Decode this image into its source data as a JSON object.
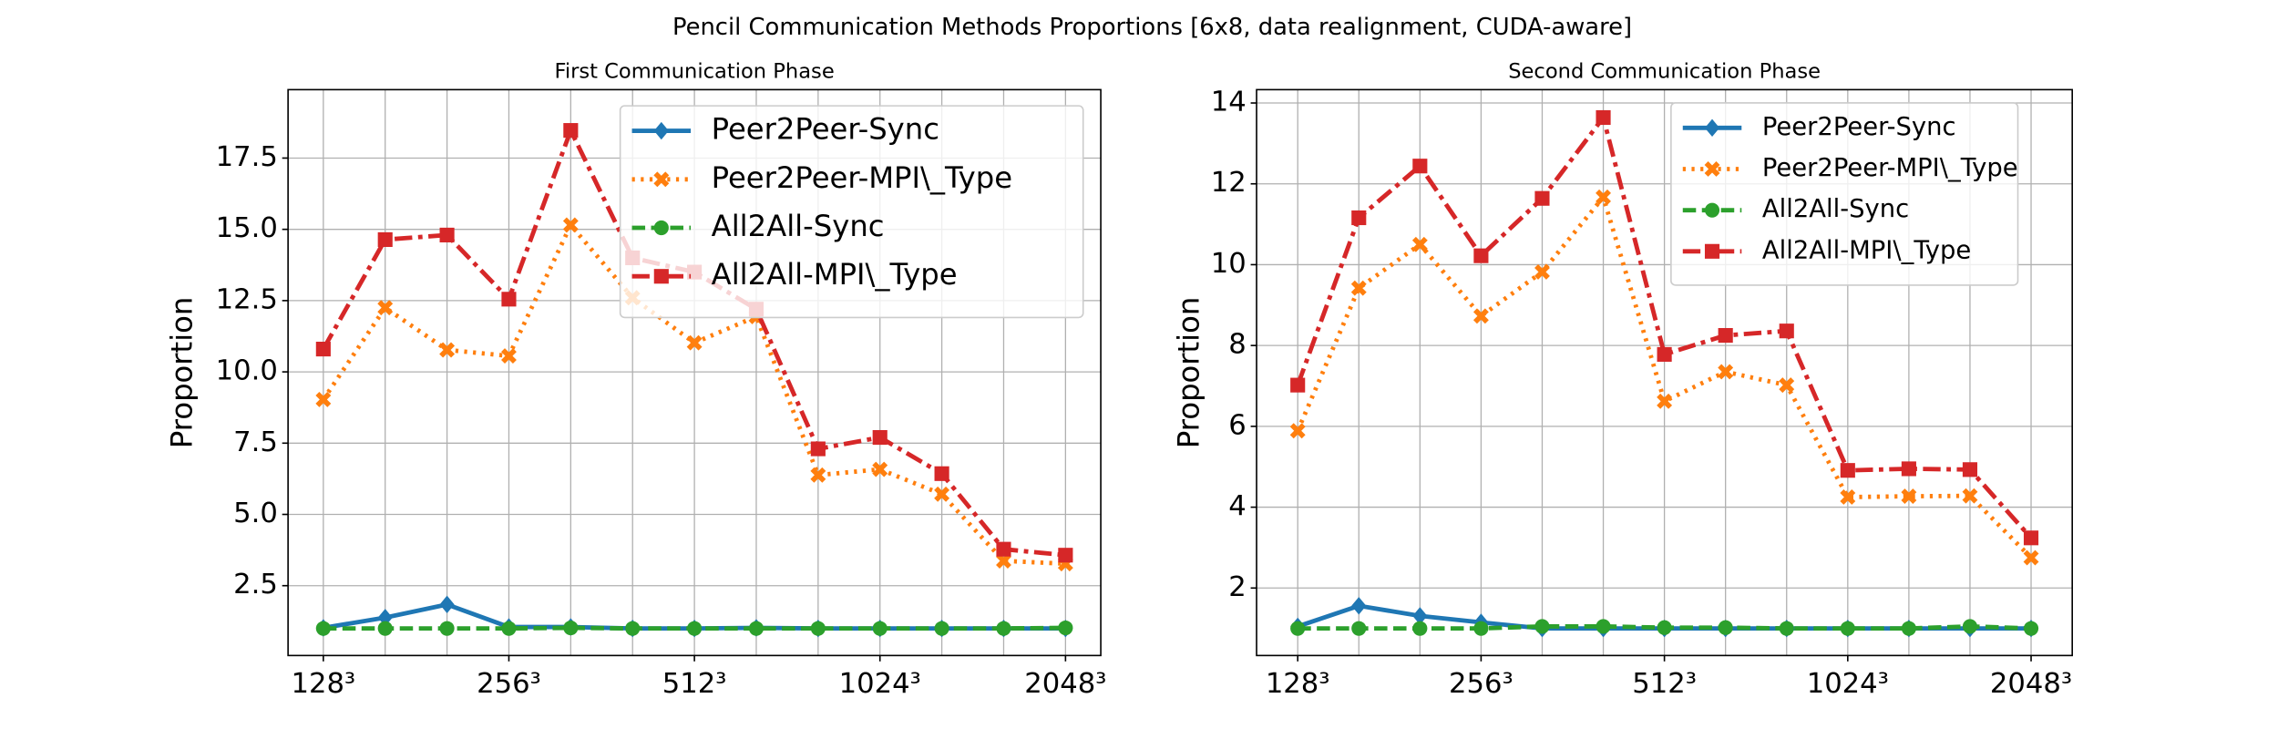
{
  "title": "Pencil Communication Methods Proportions [6x8, data realignment, CUDA-aware]",
  "chart_data": [
    {
      "type": "line",
      "title": "First Communication Phase",
      "y_label": "Proportion",
      "categories": [
        "128³",
        null,
        null,
        "256³",
        null,
        null,
        "512³",
        null,
        null,
        "1024³",
        null,
        null,
        "2048³"
      ],
      "ylim": [
        0.05,
        19.9
      ],
      "yticks": [
        2.5,
        {
          "value": 5,
          "label": "5.0"
        },
        7.5,
        {
          "value": 10,
          "label": "10.0"
        },
        12.5,
        {
          "value": 15,
          "label": "15.0"
        },
        17.5
      ],
      "grid": true,
      "legend": "upper right",
      "series": [
        {
          "name": "Peer2Peer-Sync",
          "color": "#1f77b4",
          "line_style": "solid",
          "marker": "diamond",
          "values": [
            1.02,
            1.38,
            1.84,
            1.05,
            1.05,
            1.0,
            1.0,
            1.02,
            1.0,
            1.0,
            1.0,
            1.0,
            1.0
          ]
        },
        {
          "name": "Peer2Peer-MPI\\_Type",
          "color": "#ff7f0e",
          "line_style": "dotted",
          "marker": "x",
          "values": [
            9.03,
            12.25,
            10.77,
            10.56,
            15.15,
            12.6,
            11.02,
            11.94,
            6.38,
            6.58,
            5.71,
            3.37,
            3.27
          ]
        },
        {
          "name": "All2All-Sync",
          "color": "#2ca02c",
          "line_style": "dashed",
          "marker": "circle",
          "values": [
            1.0,
            1.0,
            1.0,
            1.0,
            1.02,
            1.0,
            1.0,
            1.0,
            1.0,
            1.0,
            1.0,
            1.0,
            1.02
          ]
        },
        {
          "name": "All2All-MPI\\_Type",
          "color": "#d62728",
          "line_style": "dashdot",
          "marker": "square",
          "values": [
            10.8,
            14.64,
            14.8,
            12.55,
            18.47,
            14.0,
            13.5,
            12.2,
            7.3,
            7.7,
            6.43,
            3.78,
            3.57
          ]
        }
      ]
    },
    {
      "type": "line",
      "title": "Second Communication Phase",
      "y_label": "Proportion",
      "categories": [
        "128³",
        null,
        null,
        "256³",
        null,
        null,
        "512³",
        null,
        null,
        "1024³",
        null,
        null,
        "2048³"
      ],
      "ylim": [
        0.33,
        14.33
      ],
      "yticks": [
        2,
        4,
        6,
        8,
        10,
        12,
        14
      ],
      "grid": true,
      "legend": "upper right",
      "series": [
        {
          "name": "Peer2Peer-Sync",
          "color": "#1f77b4",
          "line_style": "solid",
          "marker": "diamond",
          "values": [
            1.05,
            1.56,
            1.31,
            1.15,
            1.0,
            1.0,
            1.0,
            1.0,
            1.0,
            1.0,
            1.0,
            1.0,
            1.0
          ]
        },
        {
          "name": "Peer2Peer-MPI\\_Type",
          "color": "#ff7f0e",
          "line_style": "dotted",
          "marker": "x",
          "values": [
            5.89,
            9.42,
            10.5,
            8.73,
            9.82,
            11.67,
            6.62,
            7.35,
            7.02,
            4.25,
            4.27,
            4.28,
            2.75
          ]
        },
        {
          "name": "All2All-Sync",
          "color": "#2ca02c",
          "line_style": "dashed",
          "marker": "circle",
          "values": [
            1.0,
            1.0,
            1.0,
            1.0,
            1.05,
            1.05,
            1.02,
            1.02,
            1.0,
            1.0,
            1.0,
            1.05,
            1.0
          ]
        },
        {
          "name": "All2All-MPI\\_Type",
          "color": "#d62728",
          "line_style": "dashdot",
          "marker": "square",
          "values": [
            7.02,
            11.16,
            12.44,
            10.22,
            11.64,
            13.64,
            7.78,
            8.25,
            8.36,
            4.91,
            4.95,
            4.93,
            3.24
          ]
        }
      ]
    }
  ]
}
